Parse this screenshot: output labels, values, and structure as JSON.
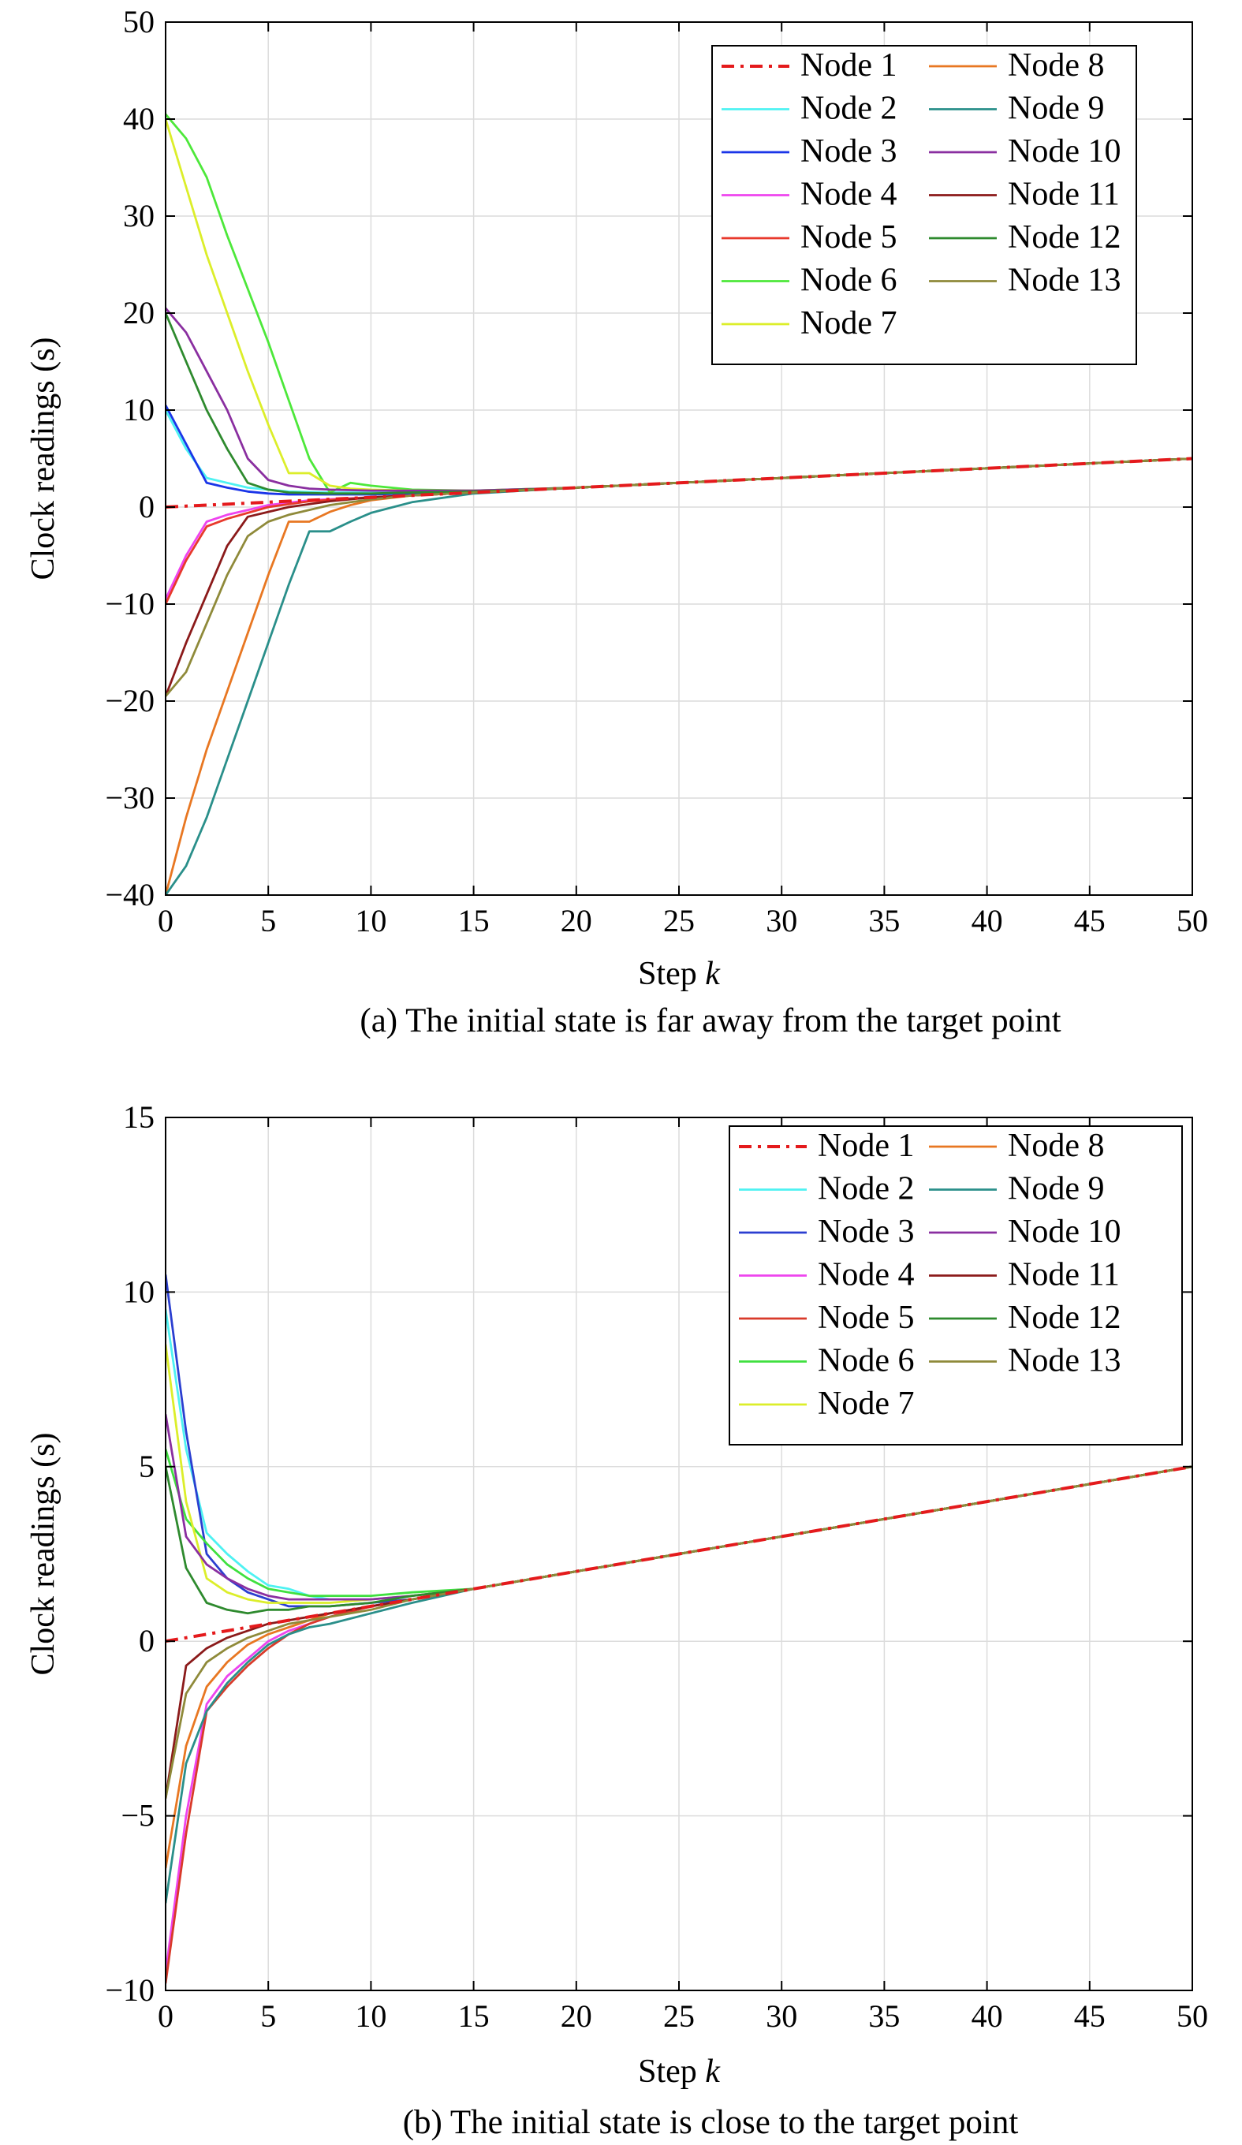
{
  "chart_data": [
    {
      "type": "line",
      "caption": "(a) The initial state is far away from the target point",
      "xlabel": "Step ",
      "xlabel_italic": "k",
      "ylabel": "Clock readings (s)",
      "xlim": [
        0,
        50
      ],
      "ylim": [
        -40,
        50
      ],
      "xticks": [
        0,
        5,
        10,
        15,
        20,
        25,
        30,
        35,
        40,
        45,
        50
      ],
      "yticks": [
        -40,
        -30,
        -20,
        -10,
        0,
        10,
        20,
        30,
        40,
        50
      ],
      "ytick_labels": [
        "−40",
        "−30",
        "−20",
        "−10",
        "0",
        "10",
        "20",
        "30",
        "40",
        "50"
      ],
      "grid": true,
      "legend_position": "top-right",
      "legend_columns": 2,
      "series": [
        {
          "name": "Node 1",
          "color": "#e41a1c",
          "dash": true,
          "x": [
            0,
            5,
            10,
            15,
            20,
            25,
            30,
            35,
            40,
            45,
            50
          ],
          "y": [
            0,
            0.5,
            1.0,
            1.5,
            2.0,
            2.5,
            3.0,
            3.5,
            4.0,
            4.5,
            5.0
          ]
        },
        {
          "name": "Node 2",
          "color": "#4ef2f2",
          "dash": false,
          "x": [
            0,
            1,
            2,
            3,
            4,
            5,
            6,
            8,
            10,
            12,
            15,
            20,
            30,
            40,
            50
          ],
          "y": [
            10,
            6,
            3,
            2.5,
            2.0,
            1.8,
            1.6,
            1.5,
            1.5,
            1.5,
            1.6,
            2.0,
            3.0,
            4.0,
            5.0
          ]
        },
        {
          "name": "Node 3",
          "color": "#1a35e8",
          "dash": false,
          "x": [
            0,
            1,
            2,
            3,
            4,
            5,
            6,
            8,
            10,
            12,
            15,
            20,
            30,
            40,
            50
          ],
          "y": [
            10.5,
            6.5,
            2.5,
            2.0,
            1.6,
            1.4,
            1.3,
            1.3,
            1.3,
            1.4,
            1.6,
            2.0,
            3.0,
            4.0,
            5.0
          ]
        },
        {
          "name": "Node 4",
          "color": "#ee44ee",
          "dash": false,
          "x": [
            0,
            1,
            2,
            3,
            4,
            5,
            7,
            10,
            12,
            15,
            20,
            30,
            40,
            50
          ],
          "y": [
            -9.5,
            -5,
            -1.5,
            -0.8,
            -0.3,
            0.2,
            0.7,
            1.0,
            1.2,
            1.5,
            2.0,
            3.0,
            4.0,
            5.0
          ]
        },
        {
          "name": "Node 5",
          "color": "#e8392c",
          "dash": false,
          "x": [
            0,
            1,
            2,
            3,
            4,
            5,
            7,
            10,
            12,
            15,
            20,
            30,
            40,
            50
          ],
          "y": [
            -10,
            -5.5,
            -2,
            -1.2,
            -0.6,
            0,
            0.6,
            1.0,
            1.2,
            1.5,
            2.0,
            3.0,
            4.0,
            5.0
          ]
        },
        {
          "name": "Node 6",
          "color": "#4de83a",
          "dash": false,
          "x": [
            0,
            1,
            2,
            3,
            4,
            5,
            6,
            7,
            8,
            9,
            10,
            12,
            15,
            20,
            30,
            40,
            50
          ],
          "y": [
            40.5,
            38,
            34,
            28,
            22.5,
            17,
            11,
            5,
            1.5,
            2.5,
            2.2,
            1.8,
            1.7,
            2.0,
            3.0,
            4.0,
            5.0
          ]
        },
        {
          "name": "Node 7",
          "color": "#dcee2a",
          "dash": false,
          "x": [
            0,
            1,
            2,
            3,
            4,
            5,
            6,
            7,
            8,
            9,
            10,
            12,
            15,
            20,
            30,
            40,
            50
          ],
          "y": [
            40,
            33,
            26,
            20,
            14,
            8.5,
            3.5,
            3.5,
            2.2,
            1.9,
            1.8,
            1.7,
            1.7,
            2.0,
            3.0,
            4.0,
            5.0
          ]
        },
        {
          "name": "Node 8",
          "color": "#e87722",
          "dash": false,
          "x": [
            0,
            1,
            2,
            3,
            4,
            5,
            6,
            7,
            8,
            9,
            10,
            12,
            15,
            20,
            30,
            40,
            50
          ],
          "y": [
            -40,
            -32,
            -25,
            -19,
            -13,
            -7,
            -1.5,
            -1.5,
            -0.5,
            0.2,
            0.7,
            1.2,
            1.5,
            2.0,
            3.0,
            4.0,
            5.0
          ]
        },
        {
          "name": "Node 9",
          "color": "#2a8f8a",
          "dash": false,
          "x": [
            0,
            1,
            2,
            3,
            4,
            5,
            6,
            7,
            8,
            9,
            10,
            12,
            15,
            20,
            30,
            40,
            50
          ],
          "y": [
            -40,
            -37,
            -32,
            -26,
            -20,
            -14,
            -8,
            -2.5,
            -2.5,
            -1.5,
            -0.6,
            0.5,
            1.4,
            2.0,
            3.0,
            4.0,
            5.0
          ]
        },
        {
          "name": "Node 10",
          "color": "#8a2fa0",
          "dash": false,
          "x": [
            0,
            1,
            2,
            3,
            4,
            5,
            6,
            7,
            8,
            10,
            12,
            15,
            20,
            30,
            40,
            50
          ],
          "y": [
            20.5,
            18,
            14,
            10,
            5,
            2.8,
            2.2,
            1.9,
            1.8,
            1.7,
            1.7,
            1.7,
            2.0,
            3.0,
            4.0,
            5.0
          ]
        },
        {
          "name": "Node 11",
          "color": "#8b1a1a",
          "dash": false,
          "x": [
            0,
            1,
            2,
            3,
            4,
            5,
            6,
            8,
            10,
            12,
            15,
            20,
            30,
            40,
            50
          ],
          "y": [
            -19.5,
            -14,
            -9,
            -4,
            -1,
            -0.5,
            0,
            0.6,
            1.0,
            1.2,
            1.5,
            2.0,
            3.0,
            4.0,
            5.0
          ]
        },
        {
          "name": "Node 12",
          "color": "#2e8a2e",
          "dash": false,
          "x": [
            0,
            1,
            2,
            3,
            4,
            5,
            6,
            8,
            10,
            12,
            15,
            20,
            30,
            40,
            50
          ],
          "y": [
            20,
            15,
            10,
            6,
            2.5,
            1.8,
            1.5,
            1.4,
            1.4,
            1.5,
            1.6,
            2.0,
            3.0,
            4.0,
            5.0
          ]
        },
        {
          "name": "Node 13",
          "color": "#8f8a3a",
          "dash": false,
          "x": [
            0,
            1,
            2,
            3,
            4,
            5,
            6,
            8,
            10,
            12,
            15,
            20,
            30,
            40,
            50
          ],
          "y": [
            -19.5,
            -17,
            -12,
            -7,
            -3,
            -1.5,
            -0.8,
            0.2,
            0.8,
            1.2,
            1.5,
            2.0,
            3.0,
            4.0,
            5.0
          ]
        }
      ]
    },
    {
      "type": "line",
      "caption": "(b) The initial state is close to the target point",
      "xlabel": "Step ",
      "xlabel_italic": "k",
      "ylabel": "Clock readings (s)",
      "xlim": [
        0,
        50
      ],
      "ylim": [
        -10,
        15
      ],
      "xticks": [
        0,
        5,
        10,
        15,
        20,
        25,
        30,
        35,
        40,
        45,
        50
      ],
      "yticks": [
        -10,
        -5,
        0,
        5,
        10,
        15
      ],
      "ytick_labels": [
        "−10",
        "−5",
        "0",
        "5",
        "10",
        "15"
      ],
      "grid": true,
      "legend_position": "top-right",
      "legend_columns": 2,
      "series": [
        {
          "name": "Node 1",
          "color": "#e41a1c",
          "dash": true,
          "x": [
            0,
            5,
            10,
            15,
            20,
            25,
            30,
            35,
            40,
            45,
            50
          ],
          "y": [
            0,
            0.5,
            1.0,
            1.5,
            2.0,
            2.5,
            3.0,
            3.5,
            4.0,
            4.5,
            5.0
          ]
        },
        {
          "name": "Node 2",
          "color": "#4ef2f2",
          "dash": false,
          "x": [
            0,
            1,
            2,
            3,
            4,
            5,
            6,
            7,
            8,
            10,
            12,
            15,
            20,
            30,
            40,
            50
          ],
          "y": [
            9.5,
            5.5,
            3.1,
            2.5,
            2.0,
            1.6,
            1.5,
            1.3,
            1.2,
            1.2,
            1.3,
            1.5,
            2.0,
            3.0,
            4.0,
            5.0
          ]
        },
        {
          "name": "Node 3",
          "color": "#2b3fd0",
          "dash": false,
          "x": [
            0,
            1,
            2,
            3,
            4,
            5,
            6,
            7,
            8,
            10,
            12,
            15,
            20,
            30,
            40,
            50
          ],
          "y": [
            10.5,
            6.0,
            2.5,
            1.8,
            1.4,
            1.2,
            1.0,
            1.0,
            1.0,
            1.1,
            1.2,
            1.5,
            2.0,
            3.0,
            4.0,
            5.0
          ]
        },
        {
          "name": "Node 4",
          "color": "#ee44ee",
          "dash": false,
          "x": [
            0,
            1,
            2,
            3,
            4,
            5,
            6,
            7,
            8,
            10,
            12,
            15,
            20,
            30,
            40,
            50
          ],
          "y": [
            -9.5,
            -5.0,
            -1.8,
            -1.0,
            -0.5,
            0.0,
            0.3,
            0.5,
            0.7,
            1.0,
            1.2,
            1.5,
            2.0,
            3.0,
            4.0,
            5.0
          ]
        },
        {
          "name": "Node 5",
          "color": "#d93a2a",
          "dash": false,
          "x": [
            0,
            1,
            2,
            3,
            4,
            5,
            6,
            7,
            8,
            10,
            12,
            15,
            20,
            30,
            40,
            50
          ],
          "y": [
            -9.8,
            -5.5,
            -2.0,
            -1.3,
            -0.7,
            -0.2,
            0.2,
            0.5,
            0.7,
            1.0,
            1.2,
            1.5,
            2.0,
            3.0,
            4.0,
            5.0
          ]
        },
        {
          "name": "Node 6",
          "color": "#3fe03f",
          "dash": false,
          "x": [
            0,
            1,
            2,
            3,
            4,
            5,
            6,
            7,
            8,
            10,
            12,
            15,
            20,
            30,
            40,
            50
          ],
          "y": [
            5.5,
            3.5,
            2.8,
            2.2,
            1.8,
            1.5,
            1.4,
            1.3,
            1.3,
            1.3,
            1.4,
            1.5,
            2.0,
            3.0,
            4.0,
            5.0
          ]
        },
        {
          "name": "Node 7",
          "color": "#dcee2a",
          "dash": false,
          "x": [
            0,
            1,
            2,
            3,
            4,
            5,
            6,
            7,
            8,
            10,
            12,
            15,
            20,
            30,
            40,
            50
          ],
          "y": [
            8.5,
            4.0,
            1.8,
            1.4,
            1.2,
            1.1,
            1.1,
            1.1,
            1.1,
            1.2,
            1.3,
            1.5,
            2.0,
            3.0,
            4.0,
            5.0
          ]
        },
        {
          "name": "Node 8",
          "color": "#e87722",
          "dash": false,
          "x": [
            0,
            1,
            2,
            3,
            4,
            5,
            6,
            7,
            8,
            10,
            12,
            15,
            20,
            30,
            40,
            50
          ],
          "y": [
            -6.5,
            -3.0,
            -1.3,
            -0.6,
            -0.1,
            0.2,
            0.4,
            0.6,
            0.8,
            1.0,
            1.2,
            1.5,
            2.0,
            3.0,
            4.0,
            5.0
          ]
        },
        {
          "name": "Node 9",
          "color": "#2a8f8a",
          "dash": false,
          "x": [
            0,
            1,
            2,
            3,
            4,
            5,
            6,
            7,
            8,
            10,
            12,
            15,
            20,
            30,
            40,
            50
          ],
          "y": [
            -7.5,
            -3.5,
            -2.0,
            -1.2,
            -0.6,
            -0.1,
            0.2,
            0.4,
            0.5,
            0.8,
            1.1,
            1.5,
            2.0,
            3.0,
            4.0,
            5.0
          ]
        },
        {
          "name": "Node 10",
          "color": "#8a2fa0",
          "dash": false,
          "x": [
            0,
            1,
            2,
            3,
            4,
            5,
            6,
            7,
            8,
            10,
            12,
            15,
            20,
            30,
            40,
            50
          ],
          "y": [
            6.5,
            3.0,
            2.2,
            1.8,
            1.5,
            1.3,
            1.2,
            1.2,
            1.2,
            1.2,
            1.3,
            1.5,
            2.0,
            3.0,
            4.0,
            5.0
          ]
        },
        {
          "name": "Node 11",
          "color": "#8b1a1a",
          "dash": false,
          "x": [
            0,
            1,
            2,
            3,
            4,
            5,
            6,
            7,
            8,
            10,
            12,
            15,
            20,
            30,
            40,
            50
          ],
          "y": [
            -4.5,
            -0.7,
            -0.2,
            0.1,
            0.3,
            0.5,
            0.6,
            0.7,
            0.8,
            1.0,
            1.2,
            1.5,
            2.0,
            3.0,
            4.0,
            5.0
          ]
        },
        {
          "name": "Node 12",
          "color": "#2e8a2e",
          "dash": false,
          "x": [
            0,
            1,
            2,
            3,
            4,
            5,
            6,
            7,
            8,
            10,
            12,
            15,
            20,
            30,
            40,
            50
          ],
          "y": [
            5.0,
            2.1,
            1.1,
            0.9,
            0.8,
            0.9,
            0.9,
            1.0,
            1.0,
            1.1,
            1.3,
            1.5,
            2.0,
            3.0,
            4.0,
            5.0
          ]
        },
        {
          "name": "Node 13",
          "color": "#8f8a3a",
          "dash": false,
          "x": [
            0,
            1,
            2,
            3,
            4,
            5,
            6,
            7,
            8,
            10,
            12,
            15,
            20,
            30,
            40,
            50
          ],
          "y": [
            -4.5,
            -1.5,
            -0.6,
            -0.2,
            0.1,
            0.3,
            0.5,
            0.6,
            0.7,
            0.9,
            1.2,
            1.5,
            2.0,
            3.0,
            4.0,
            5.0
          ]
        }
      ]
    }
  ]
}
